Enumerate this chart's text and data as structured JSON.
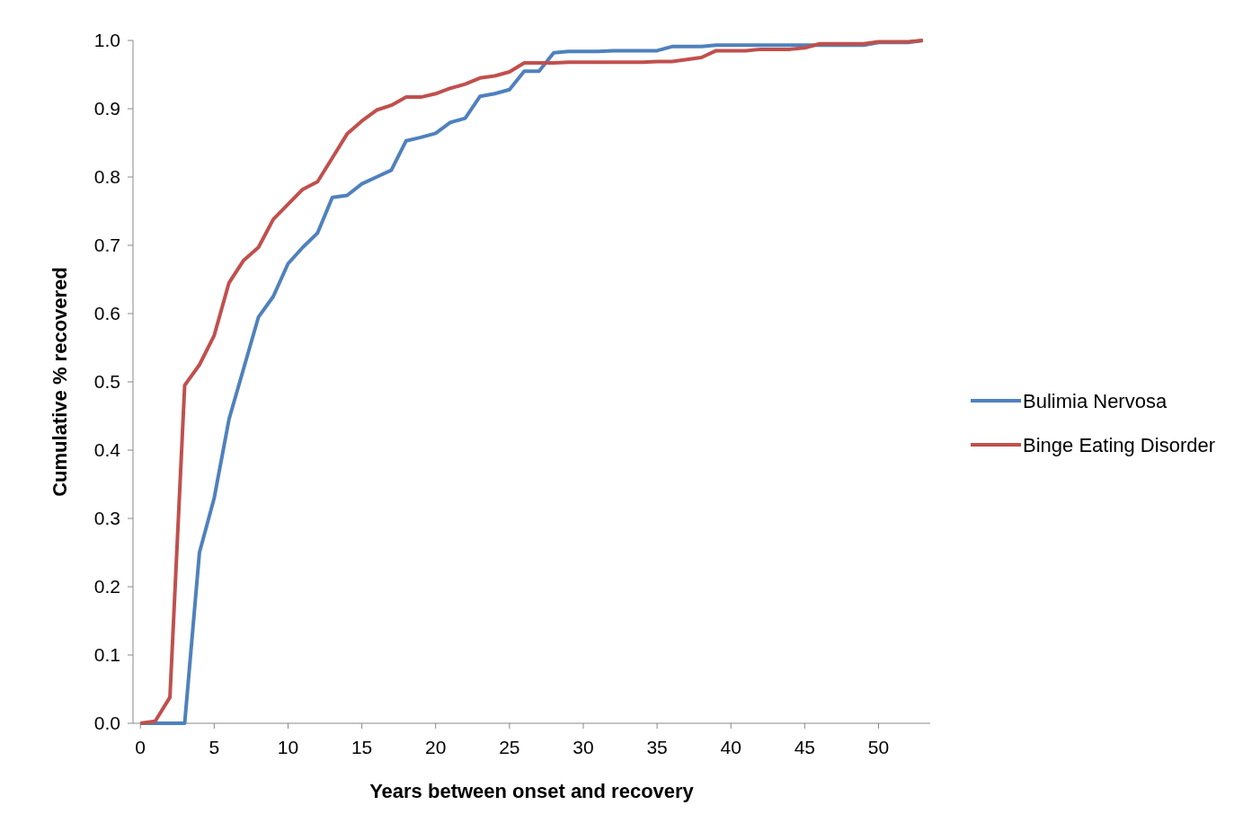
{
  "chart_data": {
    "type": "line",
    "xlabel": "Years between onset and recovery",
    "ylabel": "Cumulative % recovered",
    "x": [
      0,
      1,
      2,
      3,
      4,
      5,
      6,
      7,
      8,
      9,
      10,
      11,
      12,
      13,
      14,
      15,
      16,
      17,
      18,
      19,
      20,
      21,
      22,
      23,
      24,
      25,
      26,
      27,
      28,
      29,
      30,
      31,
      32,
      33,
      34,
      35,
      36,
      37,
      38,
      39,
      40,
      41,
      42,
      43,
      44,
      45,
      46,
      47,
      48,
      49,
      50,
      51,
      52,
      53
    ],
    "series": [
      {
        "name": "Bulimia Nervosa",
        "color": "#4f81bd",
        "values": [
          0,
          0,
          0,
          0,
          0.25,
          0.33,
          0.445,
          0.52,
          0.595,
          0.625,
          0.673,
          0.697,
          0.718,
          0.77,
          0.773,
          0.79,
          0.8,
          0.81,
          0.853,
          0.858,
          0.864,
          0.88,
          0.886,
          0.918,
          0.922,
          0.928,
          0.955,
          0.955,
          0.982,
          0.984,
          0.984,
          0.984,
          0.985,
          0.985,
          0.985,
          0.985,
          0.991,
          0.991,
          0.991,
          0.993,
          0.993,
          0.993,
          0.993,
          0.993,
          0.993,
          0.993,
          0.993,
          0.993,
          0.993,
          0.993,
          0.997,
          0.997,
          0.997,
          1.0
        ]
      },
      {
        "name": "Binge Eating Disorder",
        "color": "#c0504d",
        "values": [
          0,
          0.003,
          0.038,
          0.495,
          0.525,
          0.568,
          0.645,
          0.678,
          0.697,
          0.738,
          0.76,
          0.782,
          0.793,
          0.828,
          0.863,
          0.882,
          0.898,
          0.905,
          0.917,
          0.917,
          0.922,
          0.93,
          0.936,
          0.945,
          0.948,
          0.954,
          0.967,
          0.967,
          0.967,
          0.968,
          0.968,
          0.968,
          0.968,
          0.968,
          0.968,
          0.969,
          0.969,
          0.972,
          0.975,
          0.985,
          0.985,
          0.985,
          0.987,
          0.987,
          0.987,
          0.989,
          0.995,
          0.995,
          0.995,
          0.995,
          0.998,
          0.998,
          0.998,
          1.0
        ]
      }
    ],
    "xlim": [
      -0.5,
      53.5
    ],
    "xticks": [
      0,
      5,
      10,
      15,
      20,
      25,
      30,
      35,
      40,
      45,
      50
    ],
    "ylim": [
      0,
      1
    ],
    "yticks": [
      {
        "value": 0,
        "label": "0.0"
      },
      {
        "value": 0.1,
        "label": "0.1"
      },
      {
        "value": 0.2,
        "label": "0.2"
      },
      {
        "value": 0.3,
        "label": "0.3"
      },
      {
        "value": 0.4,
        "label": "0.4"
      },
      {
        "value": 0.5,
        "label": "0.5"
      },
      {
        "value": 0.6,
        "label": "0.6"
      },
      {
        "value": 0.7,
        "label": "0.7"
      },
      {
        "value": 0.8,
        "label": "0.8"
      },
      {
        "value": 0.9,
        "label": "0.9"
      },
      {
        "value": 1,
        "label": "1.0"
      }
    ],
    "grid": false,
    "legend": "right",
    "marker": "none",
    "line_style": "solid"
  }
}
